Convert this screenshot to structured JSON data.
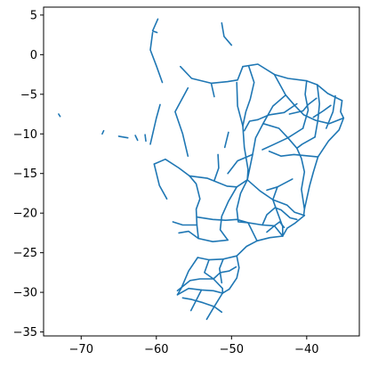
{
  "chart_data": {
    "type": "line",
    "title": "",
    "xlabel": "",
    "ylabel": "",
    "xlim": [
      -75,
      -33
    ],
    "ylim": [
      -35.5,
      6
    ],
    "xticks": [
      -70,
      -60,
      -50,
      -40
    ],
    "xtick_labels": [
      "−70",
      "−60",
      "−50",
      "−40"
    ],
    "yticks": [
      5,
      0,
      -5,
      -10,
      -15,
      -20,
      -25,
      -30,
      -35
    ],
    "ytick_labels": [
      "5",
      "0",
      "−5",
      "−10",
      "−15",
      "−20",
      "−25",
      "−30",
      "−35"
    ],
    "grid": false,
    "legend": false,
    "colors": {
      "series": "#1f77b4",
      "axes": "#000000",
      "background": "#ffffff"
    },
    "series": [
      {
        "lines": [
          [
            [
              -73,
              -7.5
            ],
            [
              -72.8,
              -7.8
            ]
          ],
          [
            [
              -67.2,
              -10
            ],
            [
              -67,
              -9.6
            ]
          ],
          [
            [
              -65,
              -10.3
            ],
            [
              -63.8,
              -10.5
            ]
          ],
          [
            [
              -62.8,
              -10.2
            ],
            [
              -62.5,
              -10.8
            ]
          ],
          [
            [
              -61.5,
              -10.1
            ],
            [
              -61.4,
              -10.9
            ]
          ],
          [
            [
              -60.3,
              -13.8
            ],
            [
              -58.8,
              -13.2
            ],
            [
              -57,
              -14.3
            ],
            [
              -55.6,
              -15.3
            ]
          ],
          [
            [
              -60.3,
              -13.8
            ],
            [
              -59.6,
              -16.5
            ],
            [
              -58.6,
              -18.2
            ]
          ],
          [
            [
              -55.6,
              -15.3
            ],
            [
              -54.7,
              -16.3
            ],
            [
              -54.2,
              -18.2
            ],
            [
              -54.7,
              -19.5
            ],
            [
              -54.6,
              -21.5
            ],
            [
              -54.4,
              -23.2
            ]
          ],
          [
            [
              -55.6,
              -15.3
            ],
            [
              -53.2,
              -15.6
            ],
            [
              -50.6,
              -16.6
            ],
            [
              -49.3,
              -16.7
            ],
            [
              -47.9,
              -15.8
            ]
          ],
          [
            [
              -60.5,
              2.8
            ],
            [
              -60.8,
              0.6
            ],
            [
              -60,
              -1.4
            ],
            [
              -59.2,
              -3.5
            ]
          ],
          [
            [
              -59.8,
              4.5
            ],
            [
              -60.5,
              3
            ],
            [
              -59.9,
              2.8
            ]
          ],
          [
            [
              -51.3,
              4
            ],
            [
              -51,
              2.3
            ],
            [
              -50,
              1.2
            ]
          ],
          [
            [
              -56.8,
              -1.5
            ],
            [
              -55.3,
              -3
            ],
            [
              -52.7,
              -3.6
            ],
            [
              -50.5,
              -3.4
            ],
            [
              -49.2,
              -3.2
            ],
            [
              -48.5,
              -1.5
            ]
          ],
          [
            [
              -55.8,
              -4.2
            ],
            [
              -57.5,
              -7.2
            ],
            [
              -56.5,
              -10
            ],
            [
              -55.8,
              -12.8
            ]
          ],
          [
            [
              -59.5,
              -6.3
            ],
            [
              -60,
              -8
            ],
            [
              -60.8,
              -11.3
            ]
          ],
          [
            [
              -49.3,
              -3.5
            ],
            [
              -49.2,
              -6.5
            ],
            [
              -48.5,
              -9
            ],
            [
              -48.3,
              -11.7
            ],
            [
              -47.8,
              -14.5
            ],
            [
              -47.9,
              -15.8
            ]
          ],
          [
            [
              -47.7,
              -1.5
            ],
            [
              -47,
              -3.5
            ],
            [
              -47.5,
              -5.6
            ],
            [
              -48.1,
              -7.2
            ],
            [
              -48.5,
              -9
            ]
          ],
          [
            [
              -48.5,
              -1.5
            ],
            [
              -46.5,
              -1.2
            ],
            [
              -44.3,
              -2.5
            ],
            [
              -42.5,
              -3
            ],
            [
              -40,
              -3.3
            ],
            [
              -38.6,
              -3.8
            ],
            [
              -37.2,
              -4.9
            ],
            [
              -35.3,
              -5.8
            ]
          ],
          [
            [
              -44.3,
              -2.5
            ],
            [
              -43.2,
              -4.4
            ],
            [
              -42.8,
              -5.1
            ],
            [
              -41.6,
              -6.4
            ],
            [
              -40.4,
              -7.6
            ],
            [
              -38.8,
              -8.3
            ],
            [
              -37,
              -8.7
            ],
            [
              -35.1,
              -8
            ]
          ],
          [
            [
              -40,
              -3.3
            ],
            [
              -40.2,
              -5
            ],
            [
              -39.8,
              -7
            ],
            [
              -40.5,
              -9.3
            ]
          ],
          [
            [
              -38.6,
              -3.8
            ],
            [
              -38.3,
              -6.2
            ],
            [
              -38.5,
              -8.2
            ],
            [
              -38.9,
              -10.4
            ]
          ],
          [
            [
              -35.3,
              -5.8
            ],
            [
              -35.5,
              -7.2
            ],
            [
              -35.1,
              -8
            ],
            [
              -35.7,
              -9.5
            ],
            [
              -36.5,
              -10.3
            ],
            [
              -37.1,
              -10.9
            ],
            [
              -38.5,
              -12.9
            ]
          ],
          [
            [
              -36.2,
              -5.2
            ],
            [
              -36.5,
              -7.2
            ],
            [
              -37.4,
              -9.3
            ]
          ],
          [
            [
              -42.8,
              -5.1
            ],
            [
              -44.5,
              -6.5
            ],
            [
              -45.8,
              -8.7
            ],
            [
              -46.8,
              -10.5
            ],
            [
              -47.2,
              -12.6
            ],
            [
              -47.9,
              -15.8
            ]
          ],
          [
            [
              -45.8,
              -8.7
            ],
            [
              -43.7,
              -9.3
            ],
            [
              -42.5,
              -10.5
            ],
            [
              -41.3,
              -11.8
            ],
            [
              -40.7,
              -13.1
            ],
            [
              -40.3,
              -14.8
            ],
            [
              -40.7,
              -17
            ],
            [
              -40.3,
              -19.5
            ],
            [
              -40.4,
              -20.3
            ]
          ],
          [
            [
              -45,
              -12.2
            ],
            [
              -43.4,
              -12.8
            ],
            [
              -41.7,
              -12.6
            ],
            [
              -38.5,
              -12.9
            ]
          ],
          [
            [
              -38.5,
              -12.9
            ],
            [
              -39.1,
              -14.8
            ],
            [
              -39.6,
              -16.5
            ],
            [
              -40.3,
              -19.5
            ]
          ],
          [
            [
              -47.9,
              -15.8
            ],
            [
              -46.2,
              -17.2
            ],
            [
              -44.5,
              -18.3
            ],
            [
              -43.9,
              -19.9
            ],
            [
              -43.2,
              -21.7
            ],
            [
              -43.2,
              -22.9
            ]
          ],
          [
            [
              -47.9,
              -15.8
            ],
            [
              -48.8,
              -17.5
            ],
            [
              -49.3,
              -19.5
            ],
            [
              -49.1,
              -21.1
            ],
            [
              -47.8,
              -21.2
            ],
            [
              -46.6,
              -23.5
            ]
          ],
          [
            [
              -49.3,
              -16.7
            ],
            [
              -50.4,
              -18.5
            ],
            [
              -51.3,
              -20.4
            ],
            [
              -51.5,
              -22.1
            ],
            [
              -50.5,
              -23.4
            ]
          ],
          [
            [
              -54.6,
              -20.5
            ],
            [
              -52.5,
              -20.8
            ],
            [
              -50.8,
              -20.9
            ],
            [
              -49.3,
              -20.8
            ],
            [
              -47.8,
              -21.2
            ],
            [
              -45.9,
              -21.5
            ],
            [
              -44.3,
              -21.6
            ],
            [
              -43.2,
              -22.9
            ]
          ],
          [
            [
              -43.2,
              -22.9
            ],
            [
              -44.9,
              -23.1
            ],
            [
              -46.6,
              -23.5
            ],
            [
              -48,
              -24.2
            ],
            [
              -49.3,
              -25.4
            ],
            [
              -51.1,
              -25.8
            ],
            [
              -53,
              -25.9
            ],
            [
              -54.5,
              -25.6
            ]
          ],
          [
            [
              -40.3,
              -20.3
            ],
            [
              -41.6,
              -21.3
            ],
            [
              -42.6,
              -21.9
            ],
            [
              -43.2,
              -22.9
            ]
          ],
          [
            [
              -44.5,
              -18.3
            ],
            [
              -42.6,
              -19
            ],
            [
              -41.6,
              -19.9
            ],
            [
              -40.3,
              -20.3
            ]
          ],
          [
            [
              -45.9,
              -21.5
            ],
            [
              -45.3,
              -20.2
            ],
            [
              -44.2,
              -19.3
            ],
            [
              -43.4,
              -19.6
            ],
            [
              -42.2,
              -20.6
            ],
            [
              -41.3,
              -20.8
            ]
          ],
          [
            [
              -45.3,
              -22.4
            ],
            [
              -44.3,
              -21.6
            ],
            [
              -43.6,
              -21.1
            ],
            [
              -43,
              -21.8
            ]
          ],
          [
            [
              -57.8,
              -21.1
            ],
            [
              -56.5,
              -21.5
            ],
            [
              -54.6,
              -21.5
            ]
          ],
          [
            [
              -57,
              -22.5
            ],
            [
              -55.7,
              -22.3
            ],
            [
              -54.4,
              -23.2
            ],
            [
              -52.5,
              -23.6
            ],
            [
              -50.5,
              -23.4
            ]
          ],
          [
            [
              -54.5,
              -25.6
            ],
            [
              -55.7,
              -27.3
            ],
            [
              -56.7,
              -29.5
            ],
            [
              -57.2,
              -30.3
            ]
          ],
          [
            [
              -53,
              -25.9
            ],
            [
              -53.6,
              -27.5
            ],
            [
              -52.4,
              -28.3
            ],
            [
              -51.2,
              -29.5
            ],
            [
              -51.2,
              -30.1
            ],
            [
              -52.3,
              -31.8
            ],
            [
              -53.3,
              -33.4
            ]
          ],
          [
            [
              -49.3,
              -25.4
            ],
            [
              -49,
              -26.9
            ],
            [
              -49.3,
              -28.2
            ],
            [
              -50.3,
              -29.6
            ],
            [
              -51.2,
              -30.1
            ]
          ],
          [
            [
              -57.2,
              -30.3
            ],
            [
              -55.7,
              -29.5
            ],
            [
              -54,
              -29.7
            ],
            [
              -52.4,
              -29.8
            ],
            [
              -51.2,
              -30.1
            ]
          ],
          [
            [
              -56.5,
              -30.7
            ],
            [
              -55.3,
              -30.9
            ],
            [
              -53.8,
              -31.3
            ],
            [
              -52.3,
              -31.8
            ],
            [
              -51.3,
              -32.5
            ]
          ],
          [
            [
              -57.2,
              -29.8
            ],
            [
              -55.5,
              -28.5
            ],
            [
              -54.2,
              -28.3
            ],
            [
              -52.4,
              -28.3
            ],
            [
              -51.5,
              -27.5
            ],
            [
              -50.3,
              -27.3
            ],
            [
              -49.4,
              -26.8
            ]
          ],
          [
            [
              -54,
              -29.7
            ],
            [
              -54.8,
              -31.2
            ],
            [
              -55.4,
              -32.3
            ]
          ],
          [
            [
              -51.1,
              -25.8
            ],
            [
              -51.6,
              -27
            ],
            [
              -51.3,
              -28.8
            ]
          ],
          [
            [
              -41.3,
              -6.2
            ],
            [
              -43,
              -7.3
            ],
            [
              -45,
              -7.6
            ],
            [
              -46.5,
              -8.2
            ]
          ],
          [
            [
              -38.7,
              -5.5
            ],
            [
              -39.8,
              -6.3
            ],
            [
              -40.5,
              -7.1
            ],
            [
              -42.3,
              -7.5
            ]
          ],
          [
            [
              -36.8,
              -6.4
            ],
            [
              -37.8,
              -7.1
            ],
            [
              -39.1,
              -7.9
            ]
          ],
          [
            [
              -40.5,
              -9.3
            ],
            [
              -42.5,
              -10.5
            ],
            [
              -44.3,
              -11.3
            ],
            [
              -45.9,
              -12
            ]
          ],
          [
            [
              -38.9,
              -10.4
            ],
            [
              -40.6,
              -11.3
            ],
            [
              -41.3,
              -11.8
            ]
          ],
          [
            [
              -47.2,
              -12.6
            ],
            [
              -49.2,
              -13.4
            ],
            [
              -50.5,
              -15
            ]
          ],
          [
            [
              -43.9,
              -16.7
            ],
            [
              -44.5,
              -18.3
            ]
          ],
          [
            [
              -41.9,
              -15.7
            ],
            [
              -43.9,
              -16.7
            ],
            [
              -45.3,
              -17.1
            ]
          ],
          [
            [
              -46.5,
              -8.2
            ],
            [
              -47.6,
              -8.4
            ],
            [
              -48.3,
              -9.6
            ]
          ],
          [
            [
              -52.7,
              -3.6
            ],
            [
              -52.3,
              -5.3
            ]
          ],
          [
            [
              -51.8,
              -12.6
            ],
            [
              -51.7,
              -14.3
            ],
            [
              -52.3,
              -15.9
            ]
          ],
          [
            [
              -50.4,
              -9.8
            ],
            [
              -50.9,
              -11.7
            ]
          ]
        ]
      }
    ]
  }
}
